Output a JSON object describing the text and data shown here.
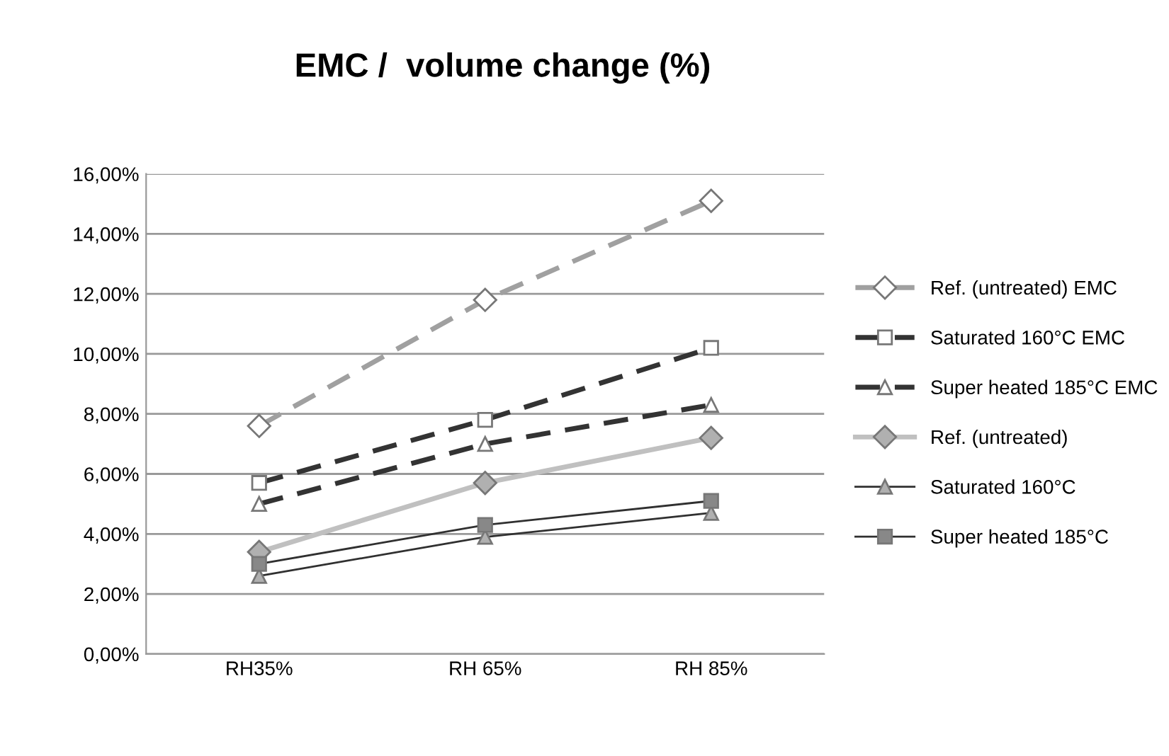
{
  "chart_data": {
    "type": "line",
    "title": "EMC /  volume change (%)",
    "categories": [
      "RH35%",
      "RH 65%",
      "RH 85%"
    ],
    "series": [
      {
        "name": "Ref. (untreated) EMC",
        "color": "#a0a0a0",
        "values": [
          7.6,
          11.8,
          15.1
        ],
        "marker": "diamond",
        "line_style": "dashed"
      },
      {
        "name": "Saturated 160°C EMC",
        "color": "#333333",
        "values": [
          5.7,
          7.8,
          10.2
        ],
        "marker": "square",
        "line_style": "dashed"
      },
      {
        "name": "Super heated 185°C EMC",
        "color": "#333333",
        "values": [
          5.0,
          7.0,
          8.3
        ],
        "marker": "triangle",
        "line_style": "dashed"
      },
      {
        "name": "Ref. (untreated)",
        "color": "#c0c0c0",
        "values": [
          3.4,
          5.7,
          7.2
        ],
        "marker": "diamond",
        "line_style": "solid"
      },
      {
        "name": "Saturated 160°C",
        "color": "#303030",
        "values": [
          2.6,
          3.9,
          4.7
        ],
        "marker": "triangle",
        "line_style": "solid"
      },
      {
        "name": "Super heated 185°C",
        "color": "#303030",
        "values": [
          3.0,
          4.3,
          5.1
        ],
        "marker": "square",
        "line_style": "solid"
      }
    ],
    "ylim": [
      0,
      16
    ],
    "yticks": [
      {
        "value": 0,
        "label": "0,00%"
      },
      {
        "value": 2,
        "label": "2,00%"
      },
      {
        "value": 4,
        "label": "4,00%"
      },
      {
        "value": 6,
        "label": "6,00%"
      },
      {
        "value": 8,
        "label": "8,00%"
      },
      {
        "value": 10,
        "label": "10,00%"
      },
      {
        "value": 12,
        "label": "12,00%"
      },
      {
        "value": 14,
        "label": "14,00%"
      },
      {
        "value": 16,
        "label": "16,00%"
      }
    ],
    "grid": "y",
    "legend": "right"
  }
}
